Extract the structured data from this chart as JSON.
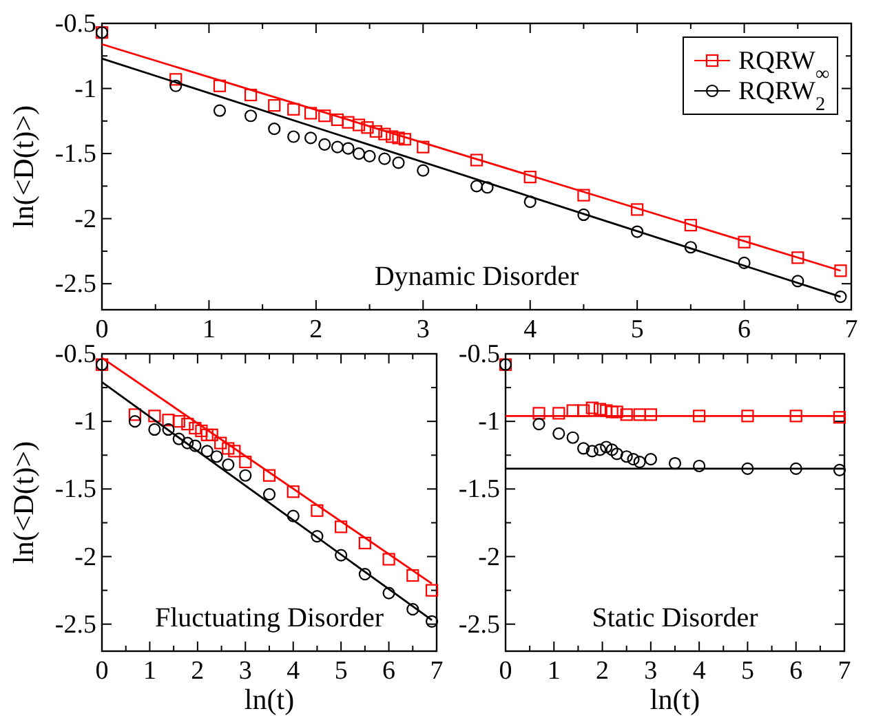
{
  "chart_data": [
    {
      "type": "scatter",
      "ylabel": "ln(<D(t)>)",
      "xlim": [
        0,
        7
      ],
      "ylim": [
        -2.7,
        -0.5
      ],
      "xticks": [
        0,
        {
          "value": 0.5,
          "label": null
        },
        1,
        {
          "value": 1.5,
          "label": null
        },
        2,
        {
          "value": 2.5,
          "label": null
        },
        3,
        {
          "value": 3.5,
          "label": null
        },
        4,
        {
          "value": 4.5,
          "label": null
        },
        5,
        {
          "value": 5.5,
          "label": null
        },
        6,
        {
          "value": 6.5,
          "label": null
        },
        7
      ],
      "yticks": [
        {
          "value": -2.5,
          "label": "-2.5"
        },
        {
          "value": -2.25,
          "label": null
        },
        {
          "value": -2,
          "label": "-2"
        },
        {
          "value": -1.75,
          "label": null
        },
        {
          "value": -1.5,
          "label": "-1.5"
        },
        {
          "value": -1.25,
          "label": null
        },
        {
          "value": -1,
          "label": "-1"
        },
        {
          "value": -0.75,
          "label": null
        },
        {
          "value": -0.5,
          "label": "-0.5"
        }
      ],
      "grid": false,
      "legend": "top right",
      "annotations": [
        "Dynamic Disorder"
      ],
      "series": [
        {
          "name": "RQRW$_{∞}$",
          "color": "#ff0000",
          "marker": "square",
          "x": [
            0,
            0.69,
            1.1,
            1.39,
            1.61,
            1.79,
            1.95,
            2.08,
            2.2,
            2.3,
            2.4,
            2.48,
            2.56,
            2.64,
            2.71,
            2.77,
            2.83,
            3,
            3.5,
            4,
            4.5,
            5,
            5.5,
            6,
            6.5,
            6.9
          ],
          "values": [
            -0.57,
            -0.93,
            -0.98,
            -1.05,
            -1.13,
            -1.16,
            -1.19,
            -1.21,
            -1.24,
            -1.26,
            -1.28,
            -1.3,
            -1.33,
            -1.35,
            -1.37,
            -1.38,
            -1.39,
            -1.45,
            -1.55,
            -1.68,
            -1.82,
            -1.93,
            -2.05,
            -2.18,
            -2.3,
            -2.4
          ]
        },
        {
          "name": "RQRW$_{2}$",
          "color": "#000000",
          "marker": "circle",
          "x": [
            0,
            0.69,
            1.1,
            1.39,
            1.61,
            1.79,
            1.95,
            2.08,
            2.2,
            2.3,
            2.4,
            2.5,
            2.64,
            2.77,
            3,
            3.5,
            3.6,
            4,
            4.5,
            5,
            5.5,
            6,
            6.5,
            6.9
          ],
          "values": [
            -0.57,
            -0.98,
            -1.17,
            -1.21,
            -1.31,
            -1.37,
            -1.38,
            -1.43,
            -1.45,
            -1.46,
            -1.5,
            -1.52,
            -1.54,
            -1.57,
            -1.63,
            -1.75,
            -1.76,
            -1.87,
            -1.97,
            -2.1,
            -2.22,
            -2.34,
            -2.48,
            -2.6
          ]
        },
        {
          "type": "line",
          "color": "#ff0000",
          "x": [
            0,
            6.9
          ],
          "values": [
            -0.66,
            -2.4
          ]
        },
        {
          "type": "line",
          "color": "#000000",
          "x": [
            0,
            6.9
          ],
          "values": [
            -0.77,
            -2.6
          ]
        }
      ]
    },
    {
      "type": "scatter",
      "xlabel": "ln(t)",
      "ylabel": "ln(<D(t)>)",
      "xlim": [
        0,
        7
      ],
      "ylim": [
        -2.7,
        -0.5
      ],
      "xticks": [
        0,
        {
          "value": 0.5,
          "label": null
        },
        1,
        {
          "value": 1.5,
          "label": null
        },
        2,
        {
          "value": 2.5,
          "label": null
        },
        3,
        {
          "value": 3.5,
          "label": null
        },
        4,
        {
          "value": 4.5,
          "label": null
        },
        5,
        {
          "value": 5.5,
          "label": null
        },
        6,
        {
          "value": 6.5,
          "label": null
        },
        7
      ],
      "yticks": [
        {
          "value": -2.5,
          "label": "-2.5"
        },
        {
          "value": -2.25,
          "label": null
        },
        {
          "value": -2,
          "label": "-2"
        },
        {
          "value": -1.75,
          "label": null
        },
        {
          "value": -1.5,
          "label": "-1.5"
        },
        {
          "value": -1.25,
          "label": null
        },
        {
          "value": -1,
          "label": "-1"
        },
        {
          "value": -0.75,
          "label": null
        },
        {
          "value": -0.5,
          "label": "-0.5"
        }
      ],
      "grid": false,
      "annotations": [
        "Fluctuating Disorder"
      ],
      "series": [
        {
          "color": "#ff0000",
          "marker": "square",
          "x": [
            0,
            0.69,
            1.1,
            1.39,
            1.61,
            1.79,
            1.95,
            2.08,
            2.2,
            2.3,
            2.48,
            2.64,
            2.77,
            3,
            3.5,
            4,
            4.5,
            5,
            5.5,
            6,
            6.5,
            6.9
          ],
          "values": [
            -0.58,
            -0.95,
            -0.96,
            -0.99,
            -1,
            -1.02,
            -1.05,
            -1.07,
            -1.1,
            -1.1,
            -1.16,
            -1.2,
            -1.22,
            -1.3,
            -1.4,
            -1.52,
            -1.66,
            -1.78,
            -1.9,
            -2.02,
            -2.14,
            -2.25
          ]
        },
        {
          "color": "#000000",
          "marker": "circle",
          "x": [
            0,
            0.69,
            1.1,
            1.39,
            1.61,
            1.79,
            1.95,
            2.2,
            2.4,
            2.64,
            3,
            3.5,
            4,
            4.5,
            5,
            5.5,
            6,
            6.5,
            6.9
          ],
          "values": [
            -0.58,
            -1,
            -1.06,
            -1.06,
            -1.13,
            -1.16,
            -1.18,
            -1.22,
            -1.26,
            -1.32,
            -1.4,
            -1.54,
            -1.7,
            -1.85,
            -1.99,
            -2.13,
            -2.27,
            -2.39,
            -2.48
          ]
        },
        {
          "type": "line",
          "color": "#ff0000",
          "x": [
            0,
            6.9
          ],
          "values": [
            -0.53,
            -2.2
          ]
        },
        {
          "type": "line",
          "color": "#000000",
          "x": [
            0,
            6.9
          ],
          "values": [
            -0.71,
            -2.47
          ]
        }
      ]
    },
    {
      "type": "scatter",
      "xlabel": "ln(t)",
      "xlim": [
        0,
        7
      ],
      "ylim": [
        -2.7,
        -0.5
      ],
      "xticks": [
        0,
        {
          "value": 0.5,
          "label": null
        },
        1,
        {
          "value": 1.5,
          "label": null
        },
        2,
        {
          "value": 2.5,
          "label": null
        },
        3,
        {
          "value": 3.5,
          "label": null
        },
        4,
        {
          "value": 4.5,
          "label": null
        },
        5,
        {
          "value": 5.5,
          "label": null
        },
        6,
        {
          "value": 6.5,
          "label": null
        },
        7
      ],
      "yticks": [
        {
          "value": -2.5,
          "label": "-2.5"
        },
        {
          "value": -2.25,
          "label": null
        },
        {
          "value": -2,
          "label": "-2"
        },
        {
          "value": -1.75,
          "label": null
        },
        {
          "value": -1.5,
          "label": "-1.5"
        },
        {
          "value": -1.25,
          "label": null
        },
        {
          "value": -1,
          "label": "-1"
        },
        {
          "value": -0.75,
          "label": null
        },
        {
          "value": -0.5,
          "label": "-0.5"
        }
      ],
      "grid": false,
      "annotations": [
        "Static Disorder"
      ],
      "series": [
        {
          "color": "#ff0000",
          "marker": "square",
          "x": [
            0,
            0.69,
            1.1,
            1.39,
            1.61,
            1.79,
            1.95,
            2.08,
            2.2,
            2.3,
            2.5,
            2.77,
            3,
            4,
            5,
            6,
            6.9
          ],
          "values": [
            -0.58,
            -0.94,
            -0.94,
            -0.92,
            -0.92,
            -0.9,
            -0.91,
            -0.92,
            -0.93,
            -0.93,
            -0.95,
            -0.95,
            -0.95,
            -0.96,
            -0.96,
            -0.96,
            -0.97
          ]
        },
        {
          "color": "#000000",
          "marker": "circle",
          "x": [
            0,
            0.69,
            1.1,
            1.39,
            1.61,
            1.79,
            1.95,
            2.08,
            2.2,
            2.3,
            2.5,
            2.64,
            2.77,
            3,
            3.5,
            4,
            5,
            6,
            6.9
          ],
          "values": [
            -0.58,
            -1.02,
            -1.09,
            -1.12,
            -1.2,
            -1.22,
            -1.21,
            -1.19,
            -1.21,
            -1.24,
            -1.26,
            -1.28,
            -1.3,
            -1.28,
            -1.31,
            -1.33,
            -1.35,
            -1.35,
            -1.36
          ]
        },
        {
          "type": "line",
          "color": "#ff0000",
          "x": [
            0,
            7
          ],
          "values": [
            -0.96,
            -0.96
          ]
        },
        {
          "type": "line",
          "color": "#000000",
          "x": [
            0,
            7
          ],
          "values": [
            -1.35,
            -1.35
          ]
        }
      ]
    }
  ]
}
